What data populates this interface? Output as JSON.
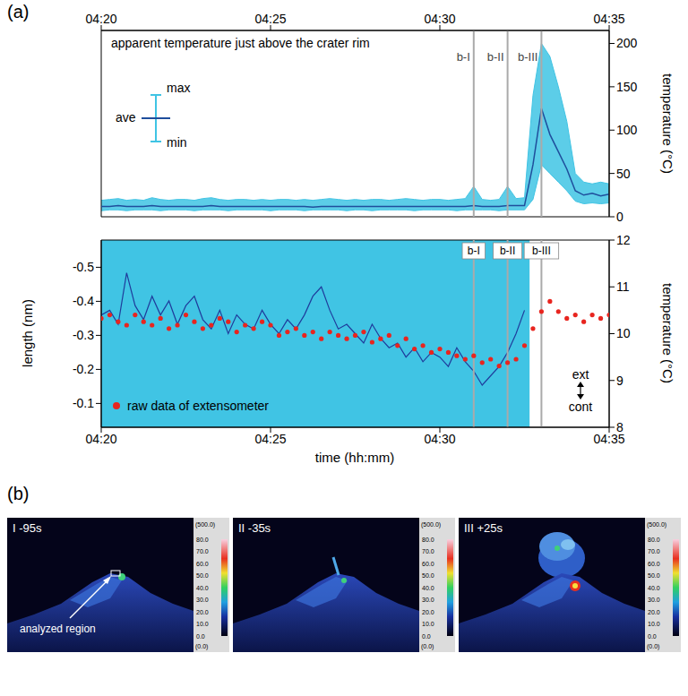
{
  "panel_labels": [
    "(a)",
    "(b)"
  ],
  "chart_data": [
    {
      "type": "line",
      "title": "apparent temperature just above the crater rim",
      "x": [
        260,
        260.25,
        260.5,
        260.75,
        261,
        261.25,
        261.5,
        261.75,
        262,
        262.25,
        262.5,
        262.75,
        263,
        263.25,
        263.5,
        263.75,
        264,
        264.25,
        264.5,
        264.75,
        265,
        265.25,
        265.5,
        265.75,
        266,
        266.25,
        266.5,
        266.75,
        267,
        267.25,
        267.5,
        267.75,
        268,
        268.25,
        268.5,
        268.75,
        269,
        269.25,
        269.5,
        269.75,
        270,
        270.25,
        270.5,
        270.75,
        271,
        271.25,
        271.5,
        271.75,
        272,
        272.25,
        272.5,
        272.75,
        273,
        273.25,
        273.5,
        273.75,
        274,
        274.25,
        274.5,
        274.75,
        275
      ],
      "series": [
        {
          "name": "ave",
          "color": "#1f4e9c",
          "values": [
            12,
            12,
            13,
            12,
            12,
            12,
            13,
            12,
            12,
            12,
            12,
            12,
            12,
            13,
            12,
            12,
            12,
            12,
            12,
            12,
            12,
            12,
            12,
            12,
            12,
            11,
            12,
            12,
            12,
            12,
            12,
            12,
            12,
            12,
            12,
            12,
            12,
            12,
            12,
            12,
            12,
            12,
            12,
            12,
            13,
            12,
            12,
            12,
            13,
            13,
            13,
            60,
            125,
            95,
            75,
            55,
            30,
            25,
            27,
            24,
            26
          ]
        },
        {
          "name": "max",
          "color": "#40c4e4",
          "values": [
            19,
            20,
            21,
            19,
            20,
            19,
            22,
            20,
            19,
            20,
            20,
            19,
            21,
            22,
            20,
            19,
            20,
            20,
            19,
            20,
            19,
            20,
            20,
            19,
            20,
            19,
            20,
            21,
            20,
            19,
            20,
            19,
            20,
            20,
            19,
            20,
            21,
            20,
            19,
            20,
            20,
            19,
            20,
            21,
            35,
            20,
            19,
            20,
            35,
            21,
            22,
            140,
            200,
            185,
            150,
            110,
            50,
            40,
            38,
            40,
            38
          ]
        },
        {
          "name": "min",
          "color": "#40c4e4",
          "values": [
            7,
            8,
            8,
            7,
            8,
            8,
            8,
            7,
            8,
            8,
            8,
            7,
            8,
            8,
            8,
            7,
            8,
            8,
            8,
            8,
            7,
            8,
            8,
            8,
            7,
            8,
            8,
            8,
            8,
            7,
            8,
            8,
            7,
            8,
            8,
            8,
            8,
            7,
            8,
            8,
            8,
            8,
            7,
            8,
            8,
            8,
            8,
            7,
            8,
            8,
            8,
            20,
            60,
            50,
            40,
            30,
            18,
            15,
            16,
            15,
            16
          ]
        }
      ],
      "xlim": [
        260,
        275
      ],
      "xticks": [
        {
          "value": 260,
          "label": "04:20"
        },
        {
          "value": 265,
          "label": "04:25"
        },
        {
          "value": 270,
          "label": "04:30"
        },
        {
          "value": 275,
          "label": "04:35"
        }
      ],
      "ylim": [
        0,
        215
      ],
      "yticks": [
        0,
        50,
        100,
        150,
        200
      ],
      "ylabel": "temperature (°C)",
      "events": [
        {
          "x": 271,
          "label": "b-I"
        },
        {
          "x": 272,
          "label": "b-II"
        },
        {
          "x": 273,
          "label": "b-III"
        }
      ],
      "legend": "upper left"
    },
    {
      "type": "scatter",
      "xlabel": "time (hh:mm)",
      "ylabel": "length (nm)",
      "y2label": "temperature (°C)",
      "xlim": [
        260,
        275
      ],
      "xticks": [
        {
          "value": 260,
          "label": "04:20"
        },
        {
          "value": 265,
          "label": "04:25"
        },
        {
          "value": 270,
          "label": "04:30"
        },
        {
          "value": 275,
          "label": "04:35"
        }
      ],
      "ylim": [
        -0.03,
        -0.58
      ],
      "yticks": [
        -0.5,
        -0.4,
        -0.3,
        -0.2,
        -0.1
      ],
      "y2lim": [
        8,
        12
      ],
      "y2ticks": [
        8,
        9,
        10,
        11,
        12
      ],
      "series": [
        {
          "name": "raw data of extensometer",
          "type": "scatter",
          "marker": "circle",
          "color": "#e8251f",
          "x": [
            260,
            260.25,
            260.5,
            260.75,
            261,
            261.25,
            261.5,
            261.75,
            262,
            262.25,
            262.5,
            262.75,
            263,
            263.25,
            263.5,
            263.75,
            264,
            264.25,
            264.5,
            264.75,
            265,
            265.25,
            265.5,
            265.75,
            266,
            266.25,
            266.5,
            266.75,
            267,
            267.25,
            267.5,
            267.75,
            268,
            268.25,
            268.5,
            268.75,
            269,
            269.25,
            269.5,
            269.75,
            270,
            270.25,
            270.5,
            270.75,
            271,
            271.25,
            271.5,
            271.75,
            272,
            272.25,
            272.5,
            272.75,
            273,
            273.25,
            273.5,
            273.75,
            274,
            274.25,
            274.5,
            274.75,
            275
          ],
          "values": [
            -0.35,
            -0.36,
            -0.34,
            -0.33,
            -0.36,
            -0.34,
            -0.33,
            -0.35,
            -0.32,
            -0.33,
            -0.36,
            -0.34,
            -0.32,
            -0.33,
            -0.35,
            -0.34,
            -0.31,
            -0.33,
            -0.32,
            -0.34,
            -0.33,
            -0.3,
            -0.31,
            -0.32,
            -0.3,
            -0.31,
            -0.29,
            -0.31,
            -0.3,
            -0.29,
            -0.3,
            -0.31,
            -0.28,
            -0.29,
            -0.3,
            -0.27,
            -0.29,
            -0.26,
            -0.27,
            -0.25,
            -0.26,
            -0.25,
            -0.24,
            -0.23,
            -0.24,
            -0.22,
            -0.23,
            -0.21,
            -0.22,
            -0.23,
            -0.27,
            -0.32,
            -0.37,
            -0.4,
            -0.37,
            -0.35,
            -0.36,
            -0.34,
            -0.36,
            -0.35,
            -0.36
          ]
        },
        {
          "type": "line",
          "axis": "y2",
          "color": "#1f3c9c",
          "x": [
            260,
            260.25,
            260.5,
            260.75,
            261,
            261.25,
            261.5,
            261.75,
            262,
            262.25,
            262.5,
            262.75,
            263,
            263.25,
            263.5,
            263.75,
            264,
            264.25,
            264.5,
            264.75,
            265,
            265.25,
            265.5,
            265.75,
            266,
            266.25,
            266.5,
            266.75,
            267,
            267.25,
            267.5,
            267.75,
            268,
            268.25,
            268.5,
            268.75,
            269,
            269.25,
            269.5,
            269.75,
            270,
            270.25,
            270.5,
            270.75,
            271,
            271.25,
            271.5,
            271.75,
            272,
            272.25,
            272.5
          ],
          "values": [
            10.4,
            10.5,
            10.2,
            11.3,
            10.6,
            10.3,
            10.8,
            10.4,
            10.7,
            10.2,
            10.6,
            10.8,
            10.3,
            10.1,
            10.5,
            10.0,
            10.4,
            10.2,
            10.1,
            10.5,
            10.2,
            10.0,
            10.3,
            10.1,
            10.4,
            10.8,
            11.0,
            10.5,
            10.1,
            10.2,
            10.0,
            9.8,
            10.2,
            9.9,
            9.7,
            9.8,
            9.5,
            9.7,
            9.4,
            9.6,
            9.5,
            9.3,
            9.7,
            9.4,
            9.2,
            8.9,
            9.1,
            9.3,
            9.6,
            10.0,
            10.5
          ]
        }
      ],
      "shaded_x": [
        260,
        272.65
      ],
      "events": [
        {
          "x": 271,
          "label": "b-I"
        },
        {
          "x": 272,
          "label": "b-II"
        },
        {
          "x": 273,
          "label": "b-III"
        }
      ],
      "annotations": [
        "ext",
        "cont"
      ],
      "legend": "lower left"
    }
  ],
  "thermal_images": {
    "frames": [
      "I -95s",
      "II -35s",
      "III +25s"
    ],
    "annotation": "analyzed region",
    "colorbar": {
      "max_label": "(500.0)",
      "min_label": "(0.0)",
      "ticks": [
        {
          "value": 0,
          "label": "0.0"
        },
        {
          "value": 10,
          "label": "10.0"
        },
        {
          "value": 20,
          "label": "20.0"
        },
        {
          "value": 30,
          "label": "30.0"
        },
        {
          "value": 40,
          "label": "40.0"
        },
        {
          "value": 50,
          "label": "50.0"
        },
        {
          "value": 60,
          "label": "60.0"
        },
        {
          "value": 70,
          "label": "70.0"
        },
        {
          "value": 80,
          "label": "80.0"
        }
      ]
    }
  }
}
